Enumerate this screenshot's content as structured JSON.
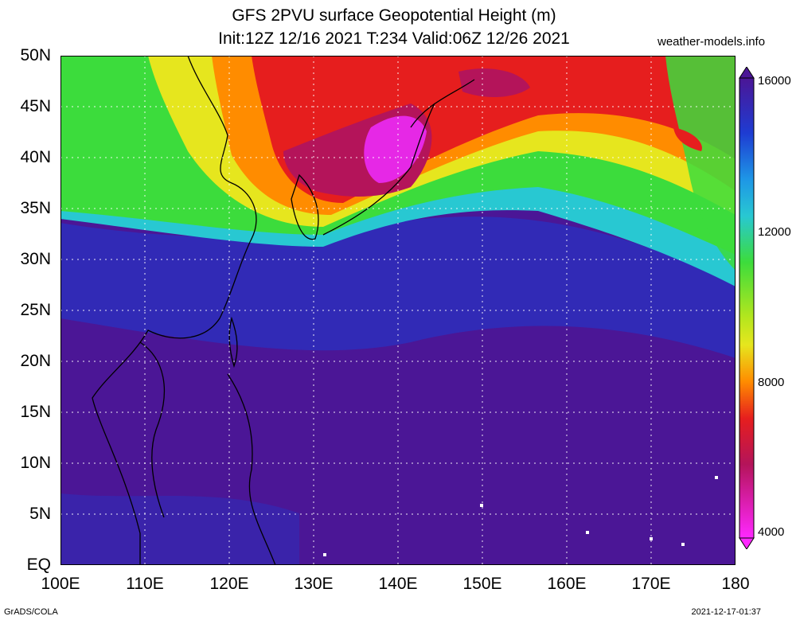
{
  "title_line1": "GFS 2PVU surface Geopotential Height (m)",
  "title_line2": "Init:12Z 12/16 2021 T:234 Valid:06Z 12/26 2021",
  "site": "weather-models.info",
  "footer_left": "GrADS/COLA",
  "footer_right": "2021-12-17-01:37",
  "lat_labels": [
    "50N",
    "45N",
    "40N",
    "35N",
    "30N",
    "25N",
    "20N",
    "15N",
    "10N",
    "5N",
    "EQ"
  ],
  "lon_labels": [
    "100E",
    "110E",
    "120E",
    "130E",
    "140E",
    "150E",
    "160E",
    "170E",
    "180"
  ],
  "colorbar_labels": [
    "16000",
    "12000",
    "8000",
    "4000"
  ],
  "colors": {
    "low_high_pv": "#4b1696",
    "blue_band": "#1e3cd2",
    "green": "#3cdc3c",
    "yellow": "#e6e61e",
    "orange": "#ff8c00",
    "red": "#e61e1e",
    "magenta": "#e628e6"
  }
}
